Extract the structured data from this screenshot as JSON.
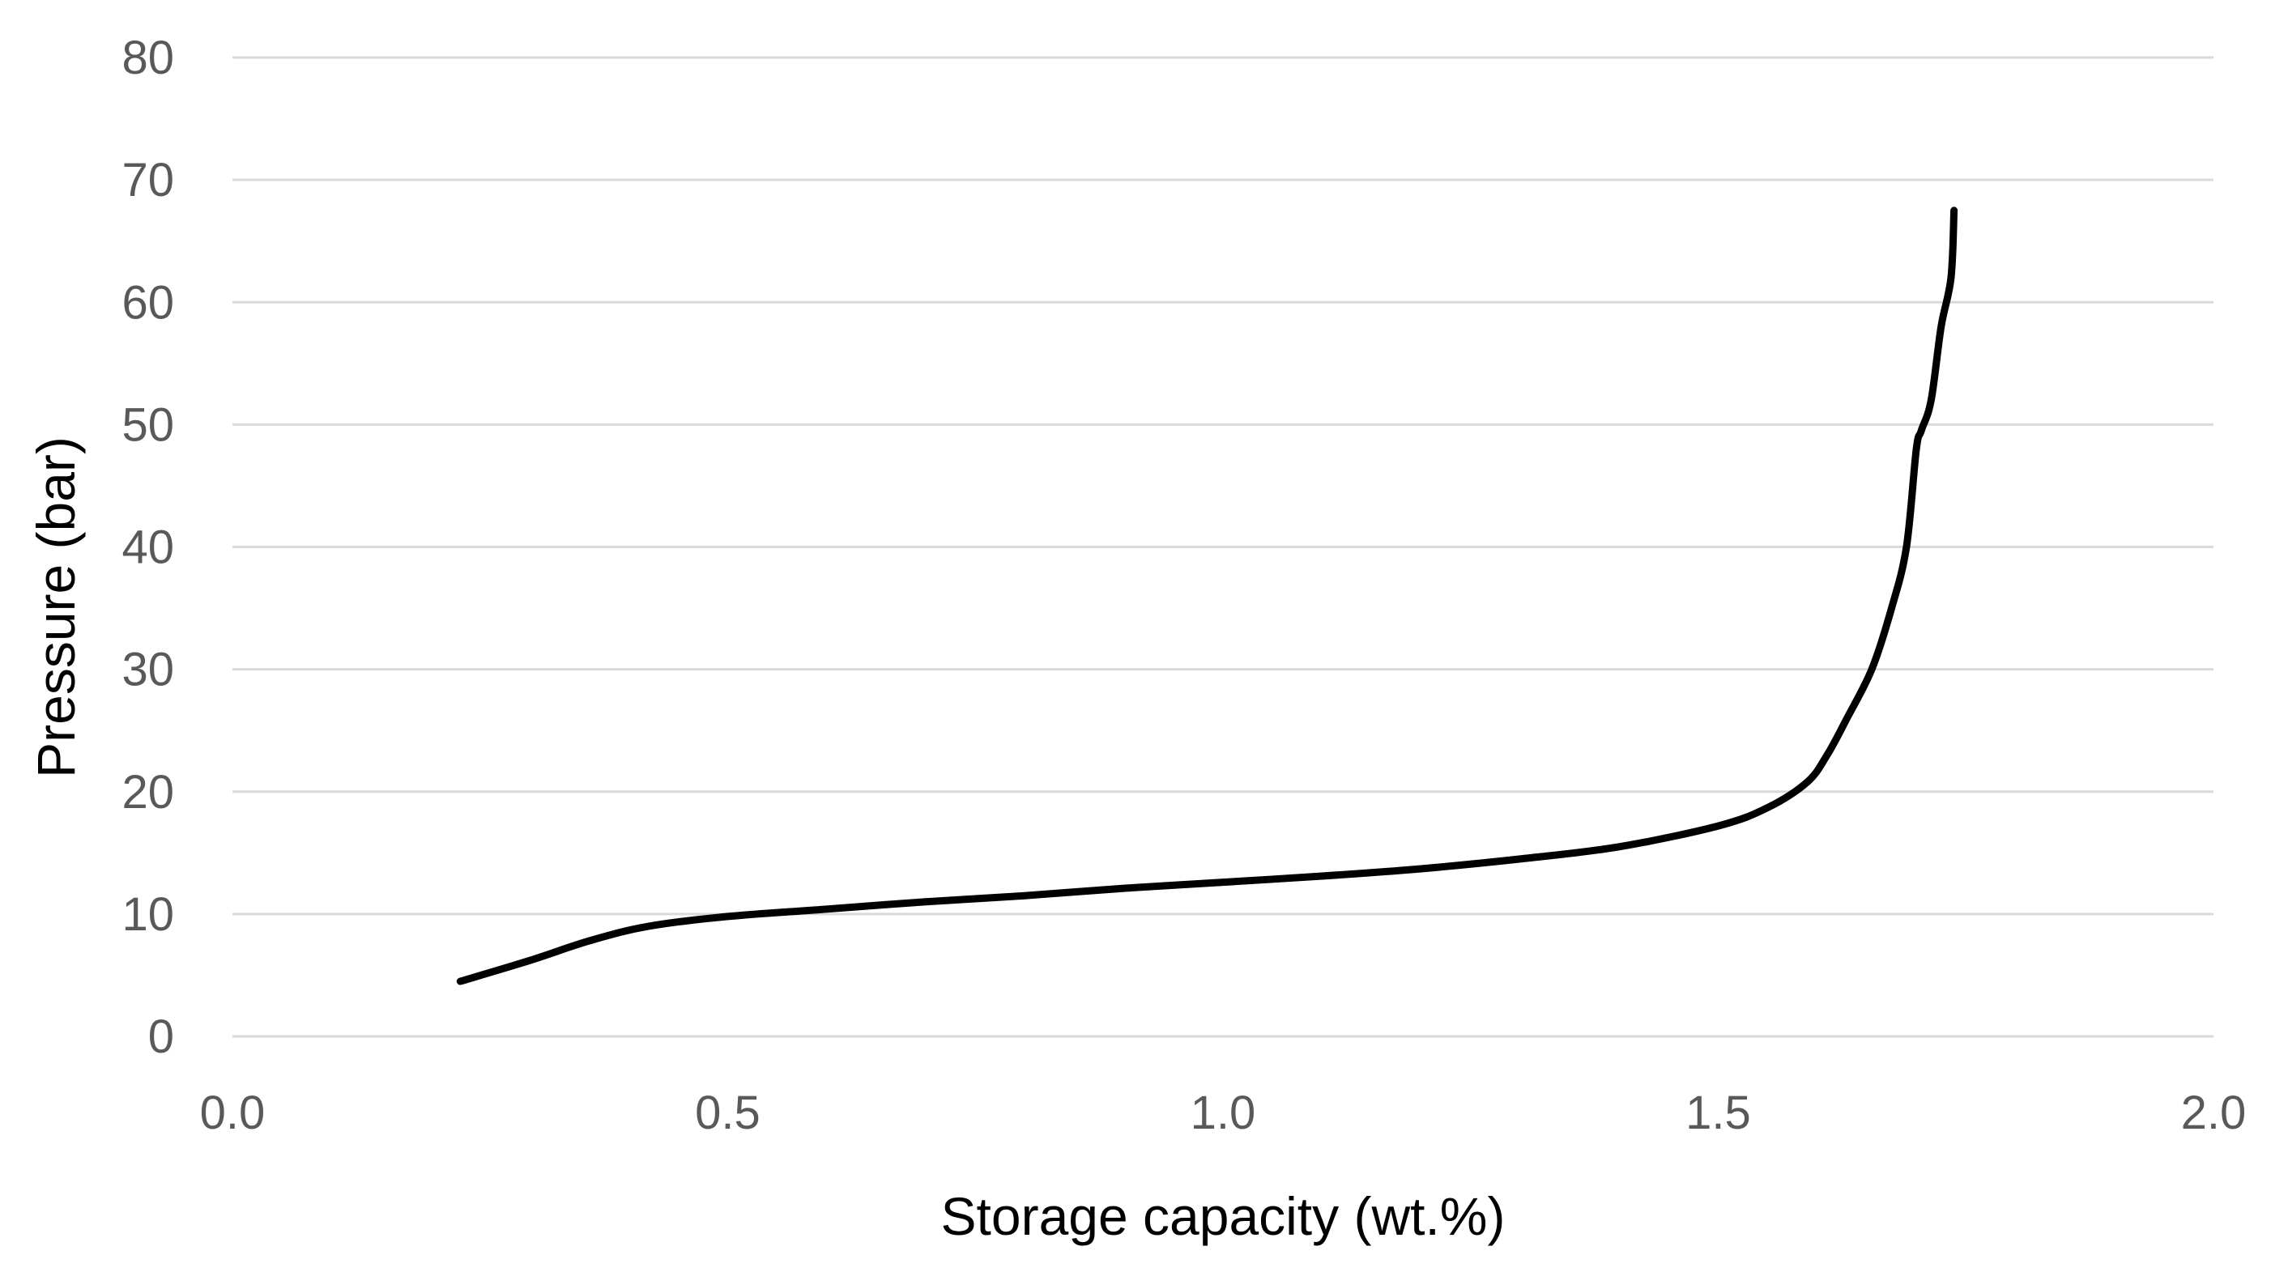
{
  "chart_data": {
    "type": "line",
    "title": "",
    "xlabel": "Storage capacity (wt.%)",
    "ylabel": "Pressure (bar)",
    "xlim": [
      0,
      2
    ],
    "ylim": [
      0,
      80
    ],
    "x_ticks": [
      0,
      0.5,
      1,
      1.5,
      2
    ],
    "x_tick_labels": [
      "0.0",
      "0.5",
      "1.0",
      "1.5",
      "2.0"
    ],
    "y_ticks": [
      0,
      10,
      20,
      30,
      40,
      50,
      60,
      70,
      80
    ],
    "y_tick_labels": [
      "0",
      "10",
      "20",
      "30",
      "40",
      "50",
      "60",
      "70",
      "80"
    ],
    "grid": "horizontal",
    "legend": "none",
    "series": [
      {
        "color": "#000000",
        "x": [
          0.23,
          0.3,
          0.36,
          0.42,
          0.5,
          0.6,
          0.7,
          0.8,
          0.9,
          1.0,
          1.1,
          1.2,
          1.3,
          1.4,
          1.5,
          1.55,
          1.59,
          1.61,
          1.63,
          1.655,
          1.675,
          1.69,
          1.7,
          1.705,
          1.715,
          1.725,
          1.735,
          1.738
        ],
        "y": [
          4.5,
          6.2,
          7.8,
          9.0,
          9.8,
          10.4,
          11.0,
          11.5,
          12.1,
          12.6,
          13.1,
          13.7,
          14.5,
          15.5,
          17.2,
          18.7,
          20.8,
          23.0,
          26.0,
          30.0,
          35.0,
          40.0,
          48.0,
          49.5,
          52.0,
          58.0,
          62.0,
          67.5
        ]
      }
    ]
  }
}
